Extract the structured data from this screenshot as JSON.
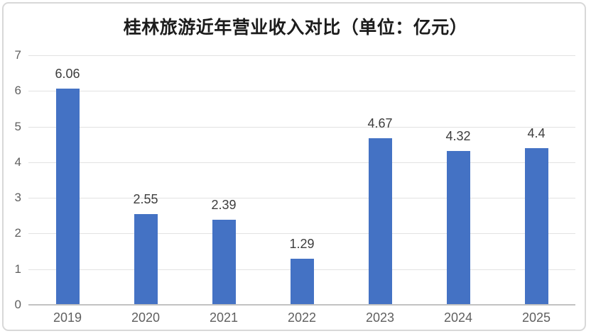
{
  "chart_data": {
    "type": "bar",
    "title": "桂林旅游近年营业收入对比（单位：亿元）",
    "categories": [
      "2019",
      "2020",
      "2021",
      "2022",
      "2023",
      "2024",
      "2025"
    ],
    "values": [
      6.06,
      2.55,
      2.39,
      1.29,
      4.67,
      4.32,
      4.4
    ],
    "data_labels": [
      "6.06",
      "2.55",
      "2.39",
      "1.29",
      "4.67",
      "4.32",
      "4.4"
    ],
    "xlabel": "",
    "ylabel": "",
    "ylim": [
      0,
      7
    ],
    "yticks": [
      0,
      1,
      2,
      3,
      4,
      5,
      6,
      7
    ],
    "grid": true,
    "legend": "none",
    "colors": {
      "bar": "#4472C4",
      "gridline": "#E2E2E2",
      "axis_line": "#C2C2C2",
      "tick_text": "#5F5F5F",
      "data_label_text": "#3D3D3D",
      "title_text": "#1C1C1C",
      "frame_border": "#D8D8D8",
      "background": "#FFFFFF"
    }
  }
}
